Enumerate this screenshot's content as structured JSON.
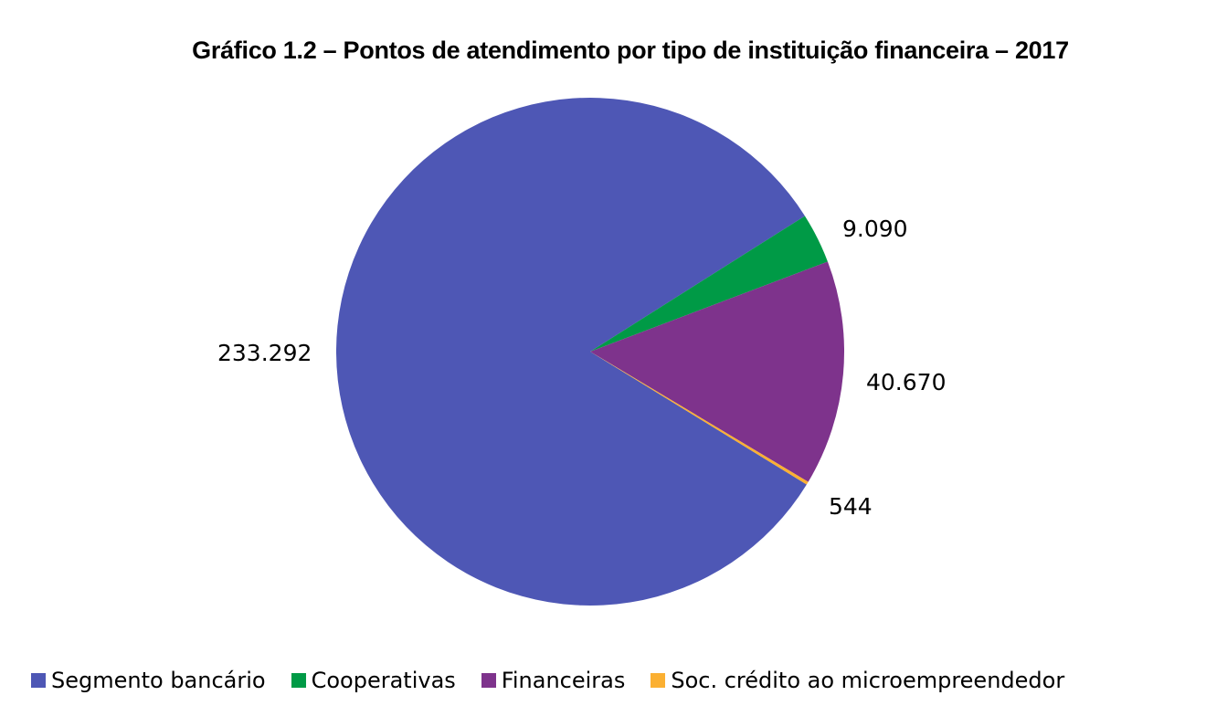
{
  "chart_data": {
    "type": "pie",
    "title": "Gráfico 1.2 – Pontos de atendimento por tipo de instituição financeira – 2017",
    "slices": [
      {
        "name": "Segmento bancário",
        "value": 233292,
        "label": "233.292",
        "color": "#4E57B5"
      },
      {
        "name": "Cooperativas",
        "value": 9090,
        "label": "9.090",
        "color": "#009A46"
      },
      {
        "name": "Financeiras",
        "value": 40670,
        "label": "40.670",
        "color": "#7E338C"
      },
      {
        "name": "Soc. crédito ao microempreendedor",
        "value": 544,
        "label": "544",
        "color": "#FBB032"
      }
    ],
    "legend_position": "bottom"
  }
}
